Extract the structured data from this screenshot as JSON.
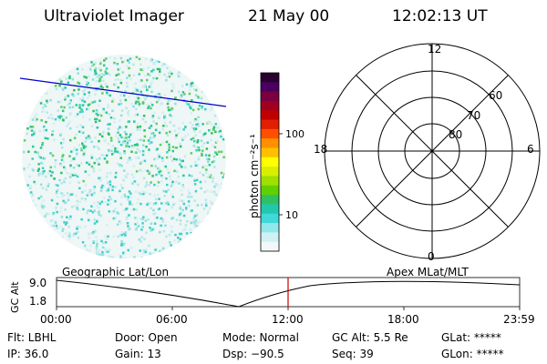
{
  "header": {
    "instrument": "Ultraviolet Imager",
    "date": "21 May 00",
    "time": "12:02:13 UT"
  },
  "colorbar": {
    "unit_label": "photon cm⁻²s⁻¹",
    "ticks": [
      "100",
      "10"
    ],
    "colors": [
      "#2a0030",
      "#4a0060",
      "#7a0040",
      "#a00020",
      "#c00000",
      "#e02000",
      "#ff5000",
      "#ff9000",
      "#ffc000",
      "#ffff00",
      "#d8f000",
      "#a0e000",
      "#60d000",
      "#30c060",
      "#20c8b0",
      "#40d8d8",
      "#90e8ea",
      "#d0f0f4",
      "#f2f8f8"
    ]
  },
  "polar": {
    "hour_labels": {
      "top": "12",
      "left": "18",
      "right": "6",
      "bottom": "0"
    },
    "lat_labels": [
      "60",
      "70",
      "80"
    ]
  },
  "timeline": {
    "left_title": "Geographic Lat/Lon",
    "right_title": "Apex MLat/MLT",
    "axis_label": "GC Alt",
    "y_ticks": [
      "9.0",
      "1.8"
    ],
    "x_ticks": [
      "00:00",
      "06:00",
      "12:00",
      "18:00",
      "23:59"
    ]
  },
  "status": {
    "filter": "Flt: LBHL",
    "ip": "IP: 36.0",
    "door": "Door: Open",
    "gain": "Gain: 13",
    "mode": "Mode: Normal",
    "dsp": "Dsp:  −90.5",
    "gc_alt": "GC Alt: 5.5 Re",
    "seq": "Seq: 39",
    "glat": "GLat: *****",
    "glon": "GLon: *****"
  }
}
